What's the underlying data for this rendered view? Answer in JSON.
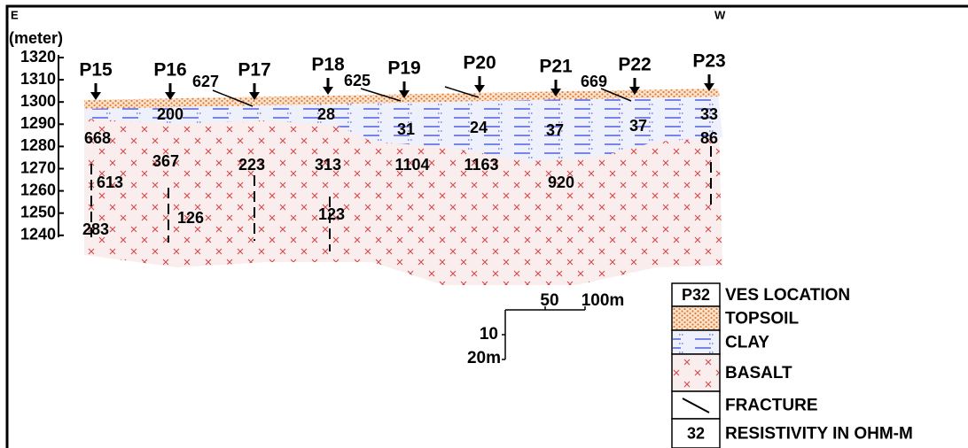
{
  "directions": {
    "east": "E",
    "west": "W"
  },
  "axis": {
    "unit": "(meter)",
    "elevations": [
      1320,
      1310,
      1300,
      1290,
      1280,
      1270,
      1260,
      1250,
      1240
    ]
  },
  "stations": [
    "P15",
    "P16",
    "P17",
    "P18",
    "P19",
    "P20",
    "P21",
    "P22",
    "P23"
  ],
  "resistivities": [
    668,
    200,
    627,
    28,
    625,
    31,
    24,
    37,
    669,
    37,
    33,
    86,
    367,
    223,
    313,
    1104,
    1163,
    613,
    920,
    126,
    123,
    283
  ],
  "scale": {
    "horizontal": [
      50,
      "100m"
    ],
    "vertical": [
      10,
      "20m"
    ]
  },
  "legend": [
    {
      "symbol": "P32",
      "label": "VES LOCATION"
    },
    {
      "label": "TOPSOIL"
    },
    {
      "label": "CLAY"
    },
    {
      "label": "BASALT"
    },
    {
      "label": "FRACTURE"
    },
    {
      "symbol": 32,
      "label": "RESISTIVITY IN OHM-M"
    }
  ]
}
